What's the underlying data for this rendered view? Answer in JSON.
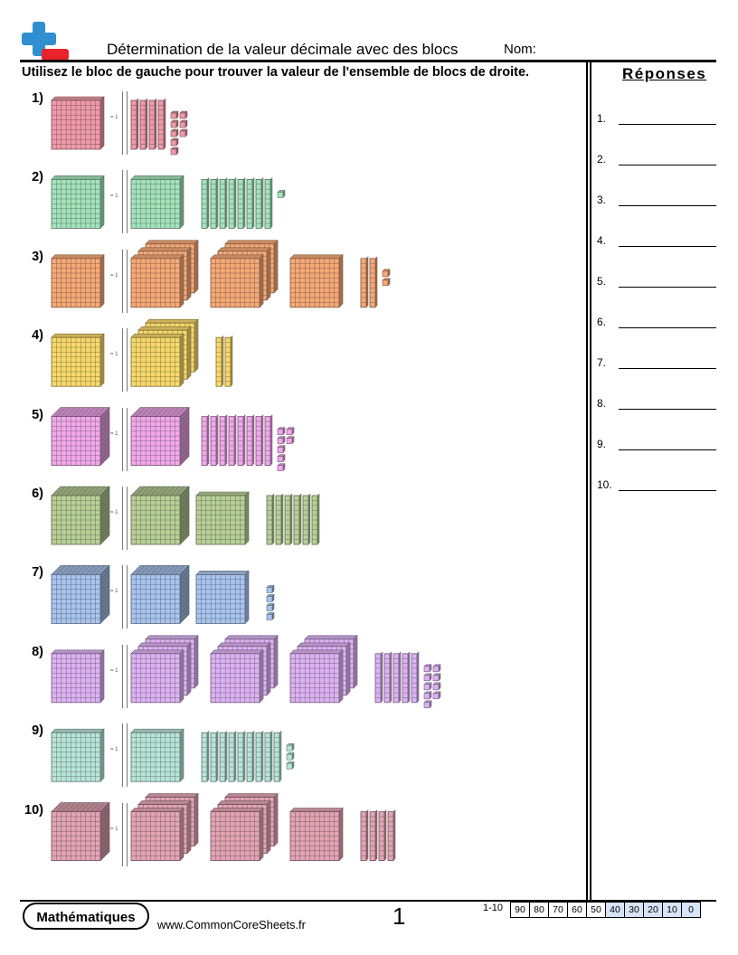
{
  "header": {
    "title": "Détermination de la valeur décimale avec des blocs",
    "name_label": "Nom:"
  },
  "instructions": "Utilisez le bloc de gauche pour trouver la valeur de l'ensemble de blocs de droite.",
  "answers": {
    "title": "Réponses",
    "items": [
      "1.",
      "2.",
      "3.",
      "4.",
      "5.",
      "6.",
      "7.",
      "8.",
      "9.",
      "10."
    ]
  },
  "problems": [
    {
      "label": "1)",
      "ref_label": "= 1",
      "color": "#ee9aa8",
      "ref": "flat",
      "blocks": {
        "cubes": 0,
        "flats": 0,
        "rods": 4,
        "units": 8
      }
    },
    {
      "label": "2)",
      "ref_label": "= 1",
      "color": "#a4e2bb",
      "ref": "flat",
      "blocks": {
        "cubes": 0,
        "flats": 1,
        "rods": 8,
        "units": 1
      }
    },
    {
      "label": "3)",
      "ref_label": "= 1",
      "color": "#f5a978",
      "ref": "flat",
      "blocks": {
        "cubes": 0,
        "flats": 7,
        "rods": 2,
        "units": 2
      }
    },
    {
      "label": "4)",
      "ref_label": "= 1",
      "color": "#f6d86c",
      "ref": "flat",
      "blocks": {
        "cubes": 0,
        "flats": 3,
        "rods": 2,
        "units": 0
      }
    },
    {
      "label": "5)",
      "ref_label": "= 1",
      "color": "#f0a8ea",
      "ref": "cube",
      "blocks": {
        "cubes": 1,
        "flats": 0,
        "rods": 8,
        "units": 7
      }
    },
    {
      "label": "6)",
      "ref_label": "= 1",
      "color": "#b8cf98",
      "ref": "cube",
      "blocks": {
        "cubes": 1,
        "flats": 1,
        "rods": 6,
        "units": 0
      }
    },
    {
      "label": "7)",
      "ref_label": "= 1",
      "color": "#a9c4ee",
      "ref": "cube",
      "blocks": {
        "cubes": 1,
        "flats": 1,
        "rods": 0,
        "units": 4
      }
    },
    {
      "label": "8)",
      "ref_label": "= 1",
      "color": "#dcb2f2",
      "ref": "flat",
      "blocks": {
        "cubes": 0,
        "flats": 9,
        "rods": 5,
        "units": 9
      }
    },
    {
      "label": "9)",
      "ref_label": "= 1",
      "color": "#b8e4d8",
      "ref": "flat",
      "blocks": {
        "cubes": 0,
        "flats": 1,
        "rods": 9,
        "units": 3
      }
    },
    {
      "label": "10)",
      "ref_label": "= 1",
      "color": "#e2a4b4",
      "ref": "cube",
      "blocks": {
        "cubes": 0,
        "flats": 7,
        "rods": 4,
        "units": 0
      }
    }
  ],
  "footer": {
    "subject": "Mathématiques",
    "website": "www.CommonCoreSheets.fr",
    "page_number": "1",
    "score_range_label": "1-10",
    "scores": [
      "90",
      "80",
      "70",
      "60",
      "50",
      "40",
      "30",
      "20",
      "10",
      "0"
    ]
  }
}
